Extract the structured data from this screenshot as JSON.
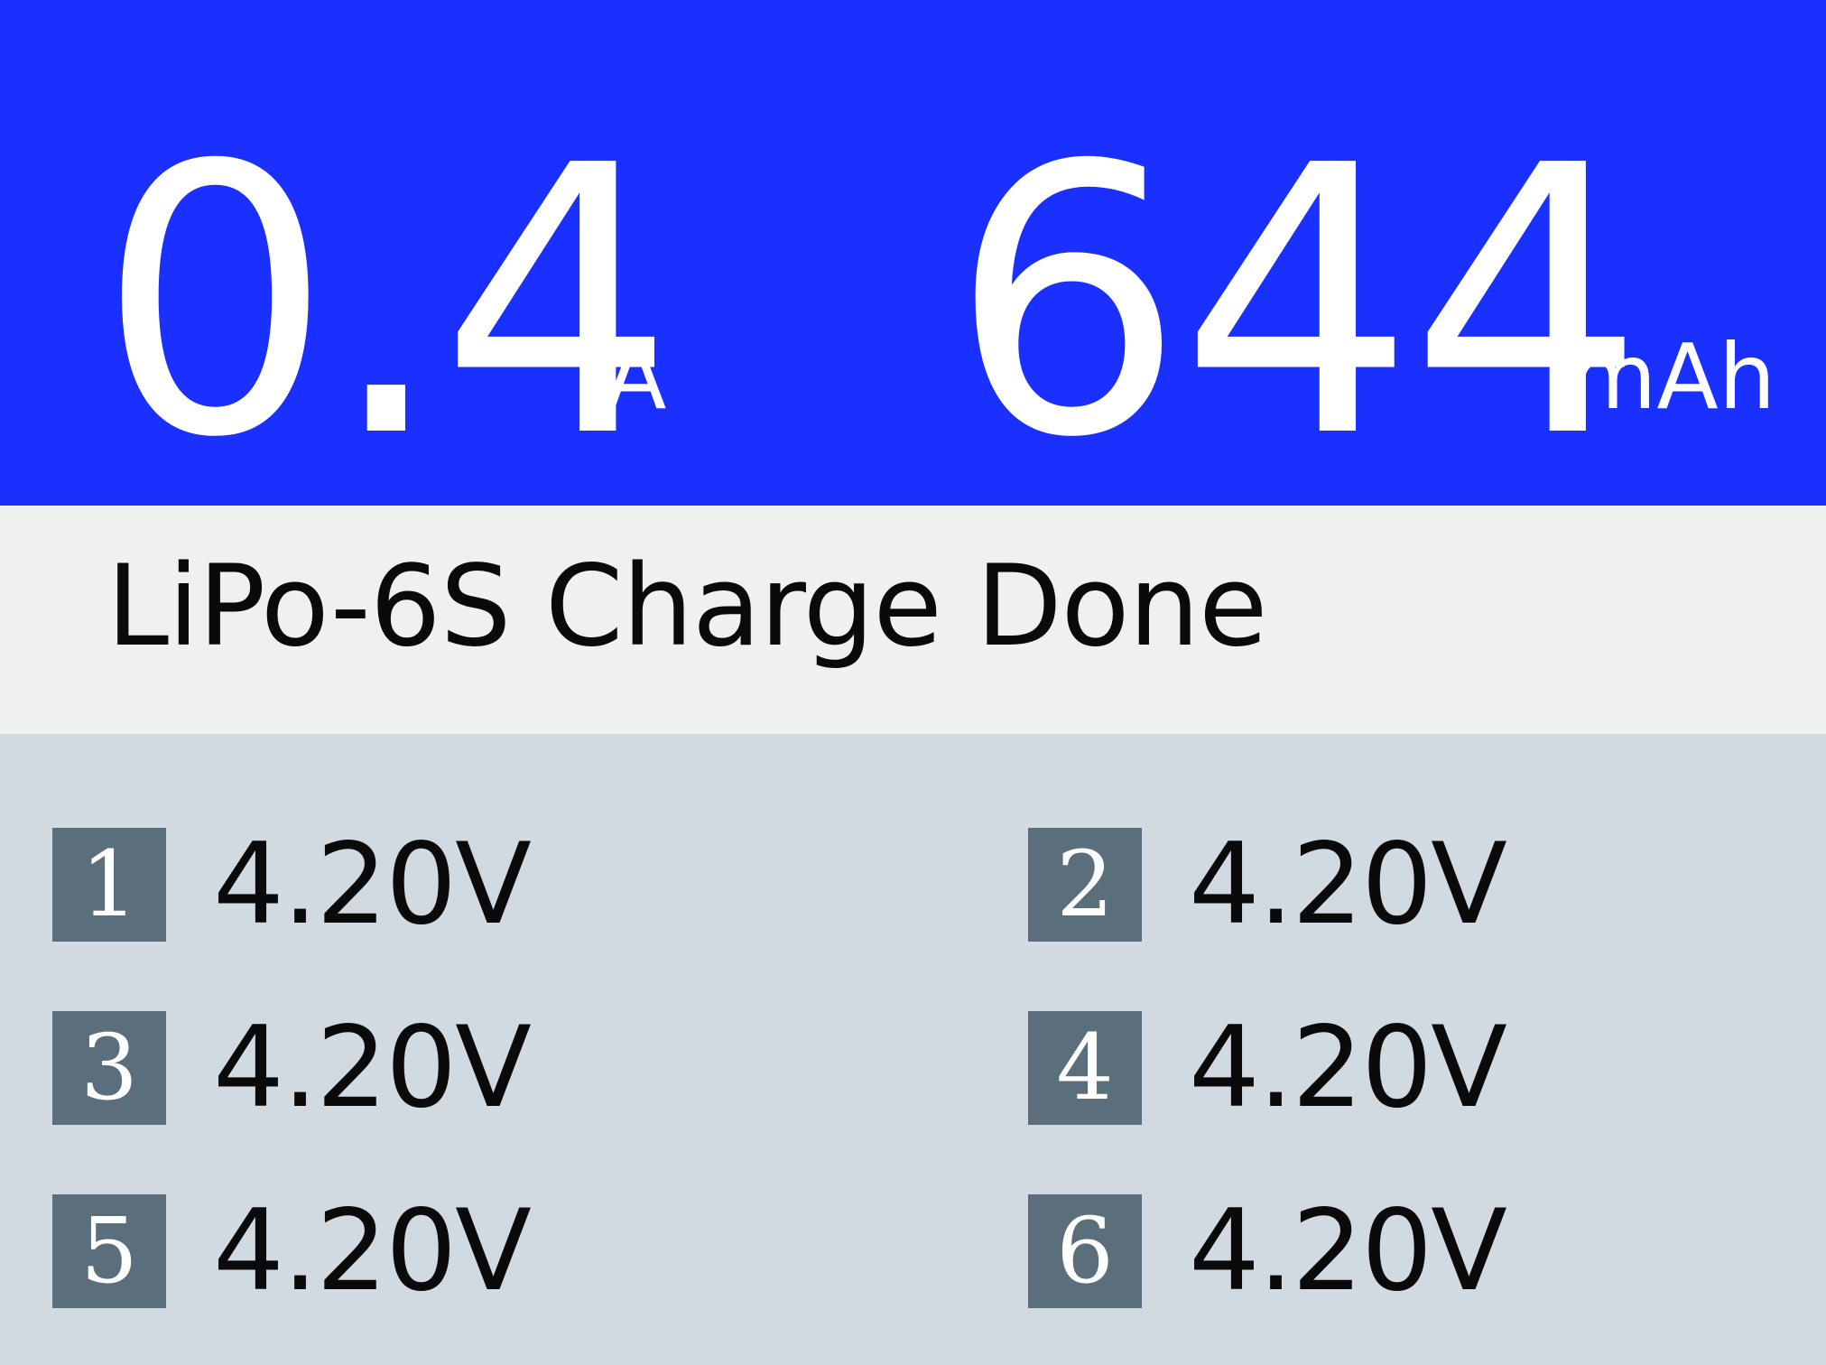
{
  "header": {
    "current_value": "0.4",
    "current_unit": "A",
    "capacity_value": "644",
    "capacity_unit": "mAh"
  },
  "status": {
    "text": "LiPo-6S Charge Done"
  },
  "cells": [
    {
      "index": "1",
      "voltage": "4.20V"
    },
    {
      "index": "2",
      "voltage": "4.20V"
    },
    {
      "index": "3",
      "voltage": "4.20V"
    },
    {
      "index": "4",
      "voltage": "4.20V"
    },
    {
      "index": "5",
      "voltage": "4.20V"
    },
    {
      "index": "6",
      "voltage": "4.20V"
    }
  ],
  "colors": {
    "header_bg": "#1930ff",
    "status_bg": "#eff1f1",
    "cells_bg": "#d1d9e1",
    "badge_bg": "#5a6f7b"
  }
}
